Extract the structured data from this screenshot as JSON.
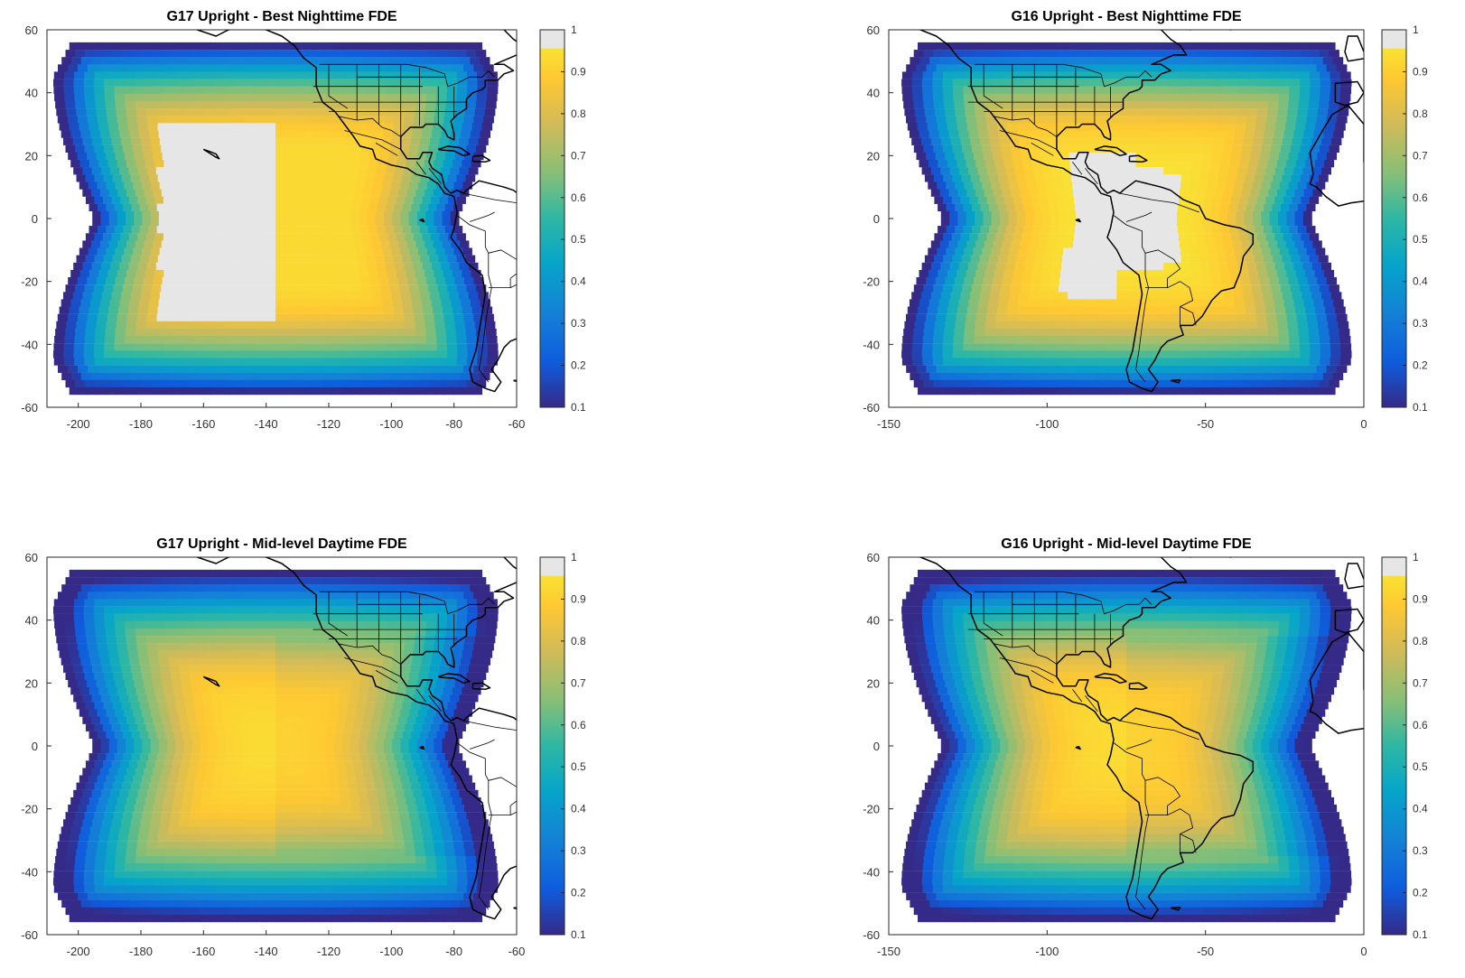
{
  "panels": [
    {
      "id": "g17-night",
      "title": "G17 Upright - Best Nighttime FDE",
      "x_ticks": [
        -200,
        -180,
        -160,
        -140,
        -120,
        -100,
        -80,
        -60
      ],
      "xlim": [
        -210,
        -60
      ],
      "satellite_lon": -137,
      "mode": "night"
    },
    {
      "id": "g16-night",
      "title": "G16 Upright - Best Nighttime FDE",
      "x_ticks": [
        -150,
        -100,
        -50,
        0
      ],
      "xlim": [
        -150,
        0
      ],
      "satellite_lon": -75,
      "mode": "night"
    },
    {
      "id": "g17-day",
      "title": "G17 Upright - Mid-level Daytime FDE",
      "x_ticks": [
        -200,
        -180,
        -160,
        -140,
        -120,
        -100,
        -80,
        -60
      ],
      "xlim": [
        -210,
        -60
      ],
      "satellite_lon": -137,
      "mode": "day"
    },
    {
      "id": "g16-day",
      "title": "G16 Upright - Mid-level Daytime FDE",
      "x_ticks": [
        -150,
        -100,
        -50,
        0
      ],
      "xlim": [
        -150,
        0
      ],
      "satellite_lon": -75,
      "mode": "day"
    }
  ],
  "y_ticks": [
    60,
    40,
    20,
    0,
    -20,
    -40,
    -60
  ],
  "ylim": [
    -60,
    60
  ],
  "colorbar": {
    "ticks": [
      1,
      0.9,
      0.8,
      0.7,
      0.6,
      0.5,
      0.4,
      0.3,
      0.2,
      0.1
    ],
    "range": [
      0.1,
      1
    ],
    "colormap": "parula",
    "top_color": "#e6e6e6"
  }
}
